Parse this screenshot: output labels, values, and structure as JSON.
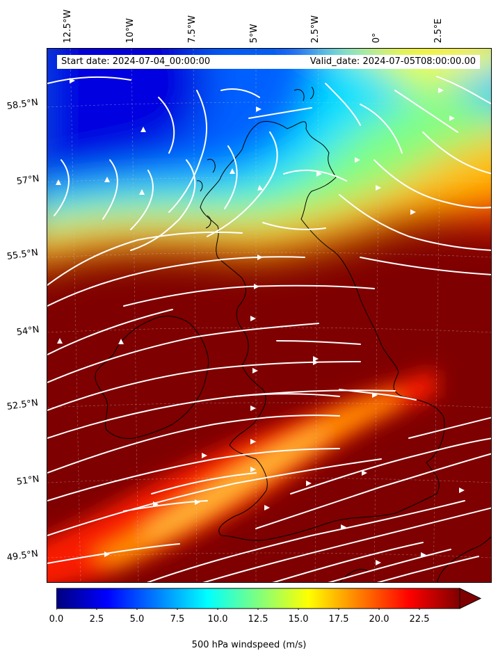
{
  "header": {
    "start_date": "Start date: 2024-07-04_00:00:00",
    "valid_date": "Valid_date: 2024-07-05T08:00:00.00"
  },
  "axes": {
    "longitude_labels": [
      "12.5°W",
      "10°W",
      "7.5°W",
      "5°W",
      "2.5°W",
      "0°",
      "2.5°E"
    ],
    "latitude_labels": [
      "58.5°N",
      "57°N",
      "55.5°N",
      "54°N",
      "52.5°N",
      "51°N",
      "49.5°N"
    ]
  },
  "colorbar": {
    "label": "500 hPa windspeed (m/s)",
    "ticks": [
      "0.0",
      "2.5",
      "5.0",
      "7.5",
      "10.0",
      "12.5",
      "15.0",
      "17.5",
      "20.0",
      "22.5"
    ],
    "min": 0,
    "max": 25,
    "extend": "max",
    "colormap": [
      "#00007f",
      "#0000ff",
      "#007fff",
      "#00ffff",
      "#7fff7f",
      "#ffff00",
      "#ff7f00",
      "#ff0000",
      "#7f0000"
    ]
  },
  "map": {
    "fill_color": "#7f0000",
    "streamline_color": "#ffffff",
    "coast_color": "#000000"
  }
}
